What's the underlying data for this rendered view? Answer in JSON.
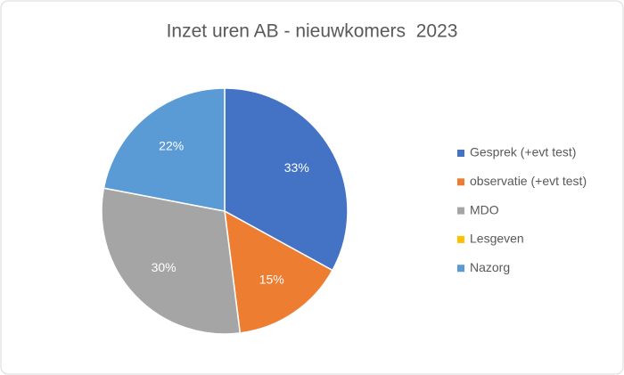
{
  "chart_data": {
    "type": "pie",
    "title": "Inzet uren AB - nieuwkomers  2023",
    "categories": [
      "Gesprek (+evt test)",
      "observatie (+evt test)",
      "MDO",
      "Lesgeven",
      "Nazorg"
    ],
    "values": [
      33,
      15,
      30,
      0,
      22
    ],
    "value_labels": [
      "33%",
      "15%",
      "30%",
      null,
      "22%"
    ],
    "colors": [
      "#4472c4",
      "#ed7d31",
      "#a5a5a5",
      "#ffc000",
      "#5b9bd5"
    ],
    "legend": "right"
  }
}
